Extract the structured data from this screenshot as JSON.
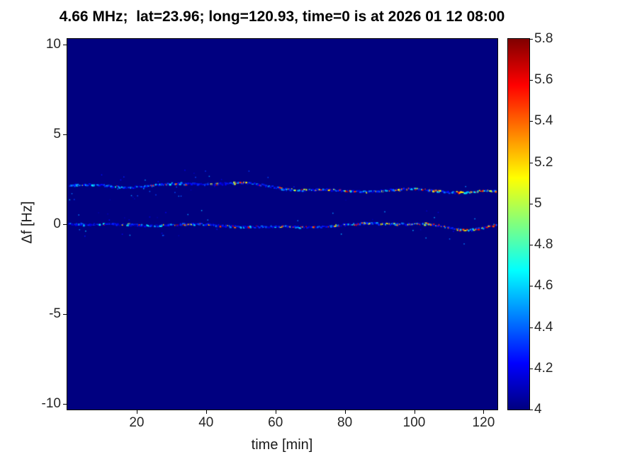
{
  "chart_data": {
    "type": "heatmap",
    "title": "4.66 MHz;  lat=23.96; long=120.93, time=0 is at 2026 01 12 08:00",
    "xlabel": "time [min]",
    "ylabel": "Δf [Hz]",
    "xlim": [
      0,
      124
    ],
    "ylim": [
      -10.3,
      10.3
    ],
    "xticks": [
      20,
      40,
      60,
      80,
      100,
      120
    ],
    "yticks": [
      10,
      5,
      0,
      -5,
      -10
    ],
    "grid": false,
    "background_value": 4,
    "colorbar": {
      "min": 4,
      "max": 5.8,
      "ticks": [
        5.8,
        5.6,
        5.4,
        5.2,
        5,
        4.8,
        4.6,
        4.4,
        4.2,
        4
      ],
      "colormap": "jet",
      "position": "right"
    },
    "traces": [
      {
        "name": "doppler-trace-upper",
        "baseline_hz": 2.0,
        "wobble_hz": 0.3,
        "description": "speckled Doppler trace near +2 Hz, mostly blue/cyan speckles with yellow-red segments increasing toward the right"
      },
      {
        "name": "doppler-trace-lower",
        "baseline_hz": 0.0,
        "wobble_hz": 0.18,
        "description": "speckled Doppler trace near 0 Hz with blue scatter cloud on the left and a small dip near t=114 min"
      }
    ]
  }
}
